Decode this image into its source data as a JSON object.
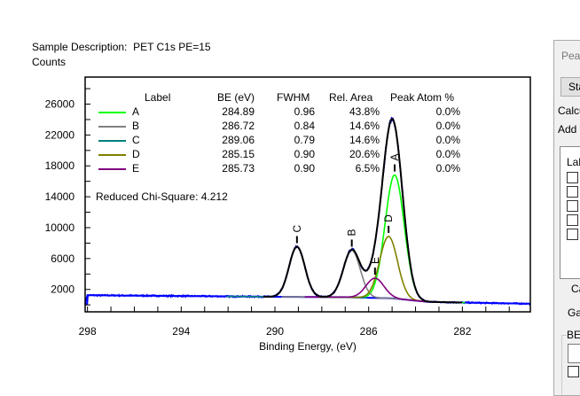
{
  "header": {
    "sample_description_label": "Sample Description:",
    "sample_description": "PET C1s PE=15",
    "y_axis_title": "Counts"
  },
  "table": {
    "headers": [
      "Label",
      "BE (eV)",
      "FWHM",
      "Rel. Area",
      "Peak Atom %"
    ],
    "rows": [
      {
        "label": "A",
        "be": "284.89",
        "fwhm": "0.96",
        "rel_area": "43.8%",
        "atom": "0.0%",
        "color": "#00ff00"
      },
      {
        "label": "B",
        "be": "286.72",
        "fwhm": "0.84",
        "rel_area": "14.6%",
        "atom": "0.0%",
        "color": "#808080"
      },
      {
        "label": "C",
        "be": "289.06",
        "fwhm": "0.79",
        "rel_area": "14.6%",
        "atom": "0.0%",
        "color": "#008080"
      },
      {
        "label": "D",
        "be": "285.15",
        "fwhm": "0.90",
        "rel_area": "20.6%",
        "atom": "0.0%",
        "color": "#808000"
      },
      {
        "label": "E",
        "be": "285.73",
        "fwhm": "0.90",
        "rel_area": "6.5%",
        "atom": "0.0%",
        "color": "#800080"
      }
    ],
    "chi_square": "Reduced Chi-Square: 4.212"
  },
  "chart_data": {
    "type": "line",
    "xlabel": "Binding Energy, (eV)",
    "ylabel": "Counts",
    "xlim": [
      298.1,
      279.1
    ],
    "x_reversed": true,
    "ylim": [
      -900,
      29500
    ],
    "x_ticks": [
      "298",
      "294",
      "290",
      "286",
      "282"
    ],
    "y_ticks": [
      "2000",
      "6000",
      "10000",
      "14000",
      "18000",
      "22000",
      "26000"
    ],
    "grid": false,
    "legend_placement": "top-left",
    "peaks": [
      {
        "label": "A",
        "center": 284.89,
        "fwhm": 0.96,
        "height": 16000,
        "color": "#00ff00"
      },
      {
        "label": "B",
        "center": 286.72,
        "fwhm": 0.84,
        "height": 6100,
        "color": "#808080"
      },
      {
        "label": "C",
        "center": 289.06,
        "fwhm": 0.79,
        "height": 6500,
        "color": "#008080"
      },
      {
        "label": "D",
        "center": 285.15,
        "fwhm": 0.9,
        "height": 8000,
        "color": "#808000"
      },
      {
        "label": "E",
        "center": 285.73,
        "fwhm": 0.9,
        "height": 2550,
        "color": "#800080"
      }
    ],
    "background": {
      "x": [
        298,
        290,
        287,
        285,
        283.5,
        282,
        279.1
      ],
      "y": [
        1250,
        1050,
        1000,
        850,
        400,
        300,
        150
      ]
    },
    "fit_range": [
      290.5,
      282
    ],
    "colors": {
      "raw_data": "#0000ff",
      "envelope": "#000000",
      "background": "#0000ff"
    }
  },
  "dialog": {
    "title": "Peal",
    "start_button": "Sta",
    "calc_label": "Calcu",
    "add_label": "Add (",
    "list_header": "Lab",
    "checkboxes": [
      false,
      false,
      false,
      false,
      false
    ],
    "ca_label": "Ca",
    "ga_label": "Gau",
    "be_group": "BE"
  }
}
